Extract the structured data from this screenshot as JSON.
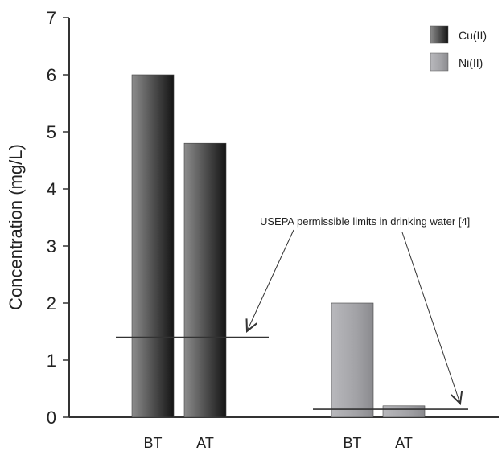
{
  "chart_data": {
    "type": "bar",
    "title": "",
    "ylabel": "Concentration (mg/L)",
    "xlabel": "",
    "ylim": [
      0,
      7
    ],
    "yticks": [
      "0",
      "1",
      "2",
      "3",
      "4",
      "5",
      "6",
      "7"
    ],
    "grid": false,
    "legend_position": "top-right",
    "series": [
      {
        "name": "Cu(II)",
        "color": "#3a3a3a",
        "categories": [
          "BT",
          "AT"
        ],
        "values": [
          6.0,
          4.8
        ],
        "limit": 1.4
      },
      {
        "name": "Ni(II)",
        "color": "#a9a9ae",
        "categories": [
          "BT",
          "AT"
        ],
        "values": [
          2.0,
          0.2
        ],
        "limit": 0.14
      }
    ],
    "annotation": "USEPA permissible limits in drinking water [4]"
  }
}
